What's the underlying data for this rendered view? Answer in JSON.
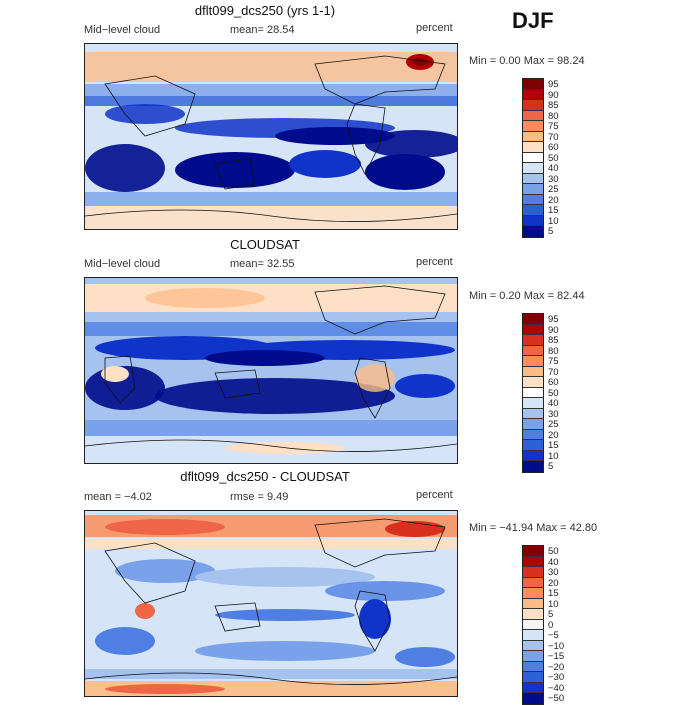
{
  "season": "DJF",
  "panels": [
    {
      "title": "dflt099_dcs250 (yrs 1-1)",
      "left_label": "Mid−level cloud",
      "mean_text": "mean=   28.54",
      "units": "percent",
      "minmax": "Min =    0.00 Max =   98.24",
      "levels": [
        "95",
        "90",
        "85",
        "80",
        "75",
        "70",
        "60",
        "50",
        "40",
        "30",
        "25",
        "20",
        "15",
        "10",
        "5"
      ]
    },
    {
      "title": "CLOUDSAT",
      "left_label": "Mid−level cloud",
      "mean_text": "mean=   32.55",
      "units": "percent",
      "minmax": "Min =    0.20 Max =   82.44",
      "levels": [
        "95",
        "90",
        "85",
        "80",
        "75",
        "70",
        "60",
        "50",
        "40",
        "30",
        "25",
        "20",
        "15",
        "10",
        "5"
      ]
    },
    {
      "title": "dflt099_dcs250 - CLOUDSAT",
      "left_label": "mean =   −4.02",
      "mean_text": "rmse =    9.49",
      "units": "percent",
      "minmax": "Min = −41.94 Max =   42.80",
      "levels": [
        "50",
        "40",
        "30",
        "20",
        "15",
        "10",
        "5",
        "0",
        "−5",
        "−10",
        "−15",
        "−20",
        "−30",
        "−40",
        "−50"
      ]
    }
  ],
  "colors": {
    "abs_scale": [
      "#7f0000",
      "#b30000",
      "#d7301f",
      "#ef6548",
      "#fc8d59",
      "#fdbb84",
      "#fde0c5",
      "#ffffff",
      "#d6e4f7",
      "#a6c3f0",
      "#7aa2ea",
      "#4f7fe3",
      "#2c5fda",
      "#1034c9",
      "#000c8c"
    ],
    "diff_scale": [
      "#7f0000",
      "#b30000",
      "#d7301f",
      "#ef6548",
      "#fc8d59",
      "#fdbb84",
      "#fde0c5",
      "#f5f5f5",
      "#d6e4f7",
      "#a6c3f0",
      "#7aa2ea",
      "#4f7fe3",
      "#2c5fda",
      "#1034c9",
      "#000c8c"
    ]
  }
}
